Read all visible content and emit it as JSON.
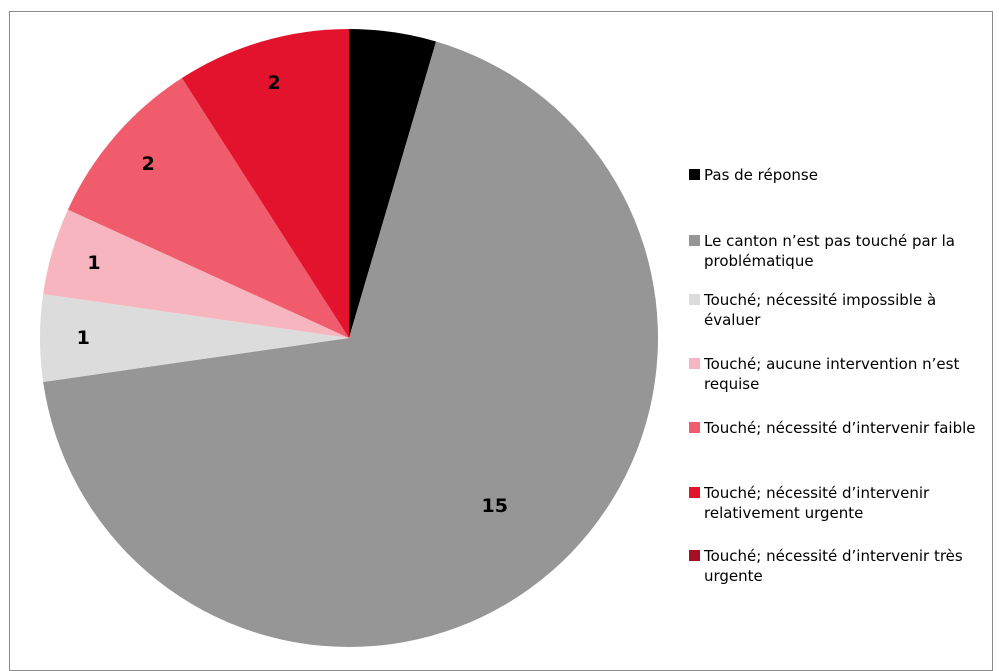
{
  "chart_data": {
    "type": "pie",
    "title": "",
    "start_angle_deg": 0,
    "direction": "clockwise",
    "legend_position": "right",
    "slices": [
      {
        "label": "Pas de réponse",
        "value": 1,
        "color": "#000000"
      },
      {
        "label": "Le canton n’est pas touché par la problématique",
        "value": 15,
        "color": "#969696"
      },
      {
        "label": "Touché; nécessité impossible à évaluer",
        "value": 1,
        "color": "#dcdcdc"
      },
      {
        "label": "Touché; aucune intervention n’est requise",
        "value": 1,
        "color": "#f7b6bf"
      },
      {
        "label": "Touché; nécessité d’intervenir faible",
        "value": 2,
        "color": "#f05c6c"
      },
      {
        "label": "Touché; nécessité d’intervenir relativement urgente",
        "value": 2,
        "color": "#e3132d"
      },
      {
        "label": "Touché; nécessité d’intervenir très urgente",
        "value": 0,
        "color": "#a80f23"
      }
    ]
  }
}
